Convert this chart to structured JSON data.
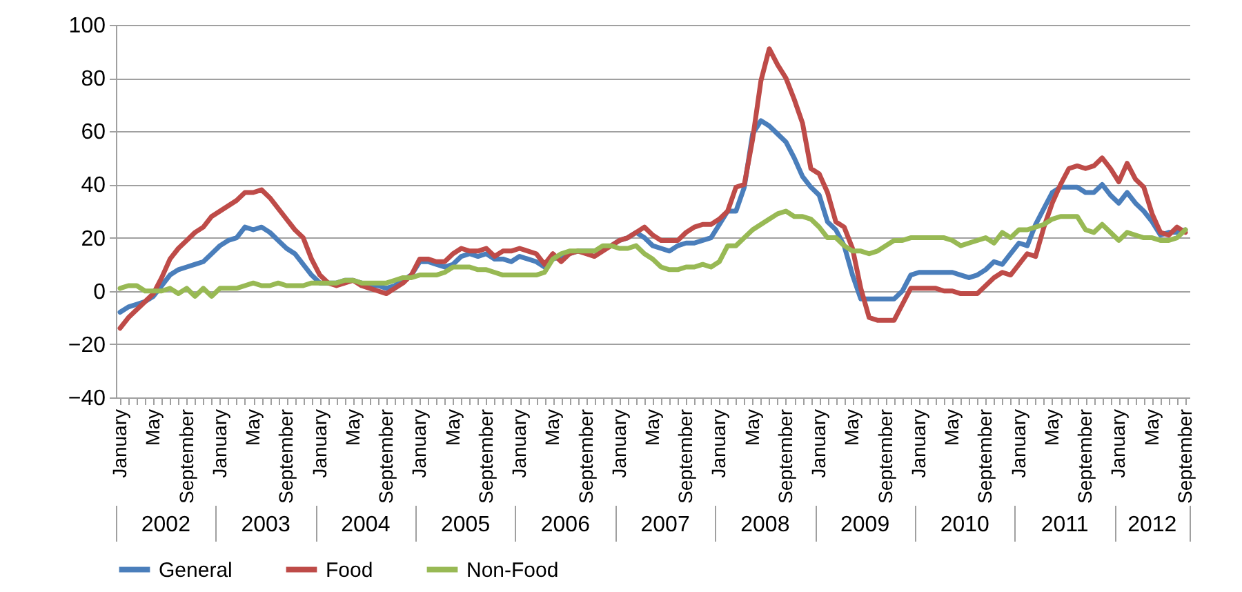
{
  "chart_data": {
    "type": "line",
    "categories": [
      "January",
      null,
      null,
      null,
      "May",
      null,
      null,
      null,
      "September",
      null,
      null,
      null,
      "January",
      null,
      null,
      null,
      "May",
      null,
      null,
      null,
      "September",
      null,
      null,
      null,
      "January",
      null,
      null,
      null,
      "May",
      null,
      null,
      null,
      "September",
      null,
      null,
      null,
      "January",
      null,
      null,
      null,
      "May",
      null,
      null,
      null,
      "September",
      null,
      null,
      null,
      "January",
      null,
      null,
      null,
      "May",
      null,
      null,
      null,
      "September",
      null,
      null,
      null,
      "January",
      null,
      null,
      null,
      "May",
      null,
      null,
      null,
      "September",
      null,
      null,
      null,
      "January",
      null,
      null,
      null,
      "May",
      null,
      null,
      null,
      "September",
      null,
      null,
      null,
      "January",
      null,
      null,
      null,
      "May",
      null,
      null,
      null,
      "September",
      null,
      null,
      null,
      "January",
      null,
      null,
      null,
      "May",
      null,
      null,
      null,
      "September",
      null,
      null,
      null,
      "January",
      null,
      null,
      null,
      "May",
      null,
      null,
      null,
      "September",
      null,
      null,
      null,
      "January",
      null,
      null,
      null,
      "May",
      null,
      null,
      null,
      "September"
    ],
    "series": [
      {
        "name": "General",
        "color": "#4a7ebb",
        "values": [
          -8,
          -6,
          -5,
          -4,
          -2,
          2,
          6,
          8,
          9,
          10,
          11,
          14,
          17,
          19,
          20,
          24,
          23,
          24,
          22,
          19,
          16,
          14,
          10,
          6,
          3,
          3,
          3,
          4,
          4,
          3,
          2,
          2,
          1,
          2,
          4,
          6,
          11,
          11,
          10,
          9,
          10,
          13,
          14,
          13,
          14,
          12,
          12,
          11,
          13,
          12,
          11,
          9,
          12,
          13,
          14,
          15,
          15,
          15,
          16,
          17,
          19,
          20,
          22,
          20,
          17,
          16,
          15,
          17,
          18,
          18,
          19,
          20,
          25,
          30,
          30,
          39,
          59,
          64,
          62,
          59,
          56,
          50,
          43,
          39,
          36,
          26,
          23,
          17,
          6,
          -3,
          -3,
          -3,
          -3,
          -3,
          0,
          6,
          7,
          7,
          7,
          7,
          7,
          6,
          5,
          6,
          8,
          11,
          10,
          14,
          18,
          17,
          25,
          31,
          37,
          39,
          39,
          39,
          37,
          37,
          40,
          36,
          33,
          37,
          33,
          30,
          26,
          21,
          22,
          22,
          23
        ]
      },
      {
        "name": "Food",
        "color": "#be4b48",
        "values": [
          -14,
          -10,
          -7,
          -4,
          -1,
          5,
          12,
          16,
          19,
          22,
          24,
          28,
          30,
          32,
          34,
          37,
          37,
          38,
          35,
          31,
          27,
          23,
          20,
          12,
          6,
          3,
          2,
          3,
          4,
          2,
          1,
          0,
          -1,
          1,
          3,
          6,
          12,
          12,
          11,
          11,
          14,
          16,
          15,
          15,
          16,
          13,
          15,
          15,
          16,
          15,
          14,
          10,
          14,
          11,
          14,
          15,
          14,
          13,
          15,
          17,
          19,
          20,
          22,
          24,
          21,
          19,
          19,
          19,
          22,
          24,
          25,
          25,
          27,
          30,
          39,
          40,
          57,
          79,
          91,
          85,
          80,
          72,
          63,
          46,
          44,
          37,
          26,
          24,
          16,
          1,
          -10,
          -11,
          -11,
          -11,
          -5,
          1,
          1,
          1,
          1,
          0,
          0,
          -1,
          -1,
          -1,
          2,
          5,
          7,
          6,
          10,
          14,
          13,
          24,
          33,
          40,
          46,
          47,
          46,
          47,
          50,
          46,
          41,
          48,
          42,
          39,
          29,
          22,
          21,
          24,
          22
        ]
      },
      {
        "name": "Non-Food",
        "color": "#98b954",
        "values": [
          1,
          2,
          2,
          0,
          0,
          0,
          1,
          -1,
          1,
          -2,
          1,
          -2,
          1,
          1,
          1,
          2,
          3,
          2,
          2,
          3,
          2,
          2,
          2,
          3,
          3,
          3,
          3,
          4,
          4,
          3,
          3,
          3,
          3,
          4,
          5,
          5,
          6,
          6,
          6,
          7,
          9,
          9,
          9,
          8,
          8,
          7,
          6,
          6,
          6,
          6,
          6,
          7,
          12,
          14,
          15,
          15,
          15,
          15,
          17,
          17,
          16,
          16,
          17,
          14,
          12,
          9,
          8,
          8,
          9,
          9,
          10,
          9,
          11,
          17,
          17,
          20,
          23,
          25,
          27,
          29,
          30,
          28,
          28,
          27,
          24,
          20,
          20,
          17,
          15,
          15,
          14,
          15,
          17,
          19,
          19,
          20,
          20,
          20,
          20,
          20,
          19,
          17,
          18,
          19,
          20,
          18,
          22,
          20,
          23,
          23,
          24,
          25,
          27,
          28,
          28,
          28,
          23,
          22,
          25,
          22,
          19,
          22,
          21,
          20,
          20,
          19,
          19,
          20,
          23
        ]
      }
    ],
    "ylim": [
      -40,
      100
    ],
    "yticks": [
      -40,
      -20,
      0,
      20,
      40,
      60,
      80,
      100
    ],
    "annotations": [
      "2002",
      "2003",
      "2004",
      "2005",
      "2006",
      "2007",
      "2008",
      "2009",
      "2010",
      "2011",
      "2012"
    ],
    "grid": "y",
    "legend": "bottom",
    "marker": "none",
    "line_style": "solid"
  }
}
